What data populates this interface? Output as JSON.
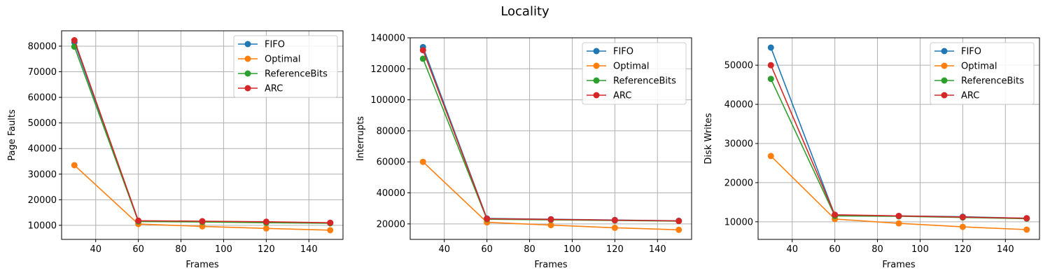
{
  "figure": {
    "title": "Locality"
  },
  "style": {
    "series_colors": [
      "#1f77b4",
      "#ff7f0e",
      "#2ca02c",
      "#d62728"
    ],
    "grid_color": "#b0b0b0"
  },
  "chart_data": [
    {
      "type": "line",
      "xlabel": "Frames",
      "ylabel": "Page Faults",
      "xlim": [
        24,
        156
      ],
      "ylim": [
        4500,
        86000
      ],
      "xticks": [
        40,
        60,
        80,
        100,
        120,
        140
      ],
      "yticks": [
        10000,
        20000,
        30000,
        40000,
        50000,
        60000,
        70000,
        80000
      ],
      "grid": true,
      "legend_position": "top-right",
      "x": [
        30,
        60,
        90,
        120,
        150
      ],
      "series": [
        {
          "name": "FIFO",
          "values": [
            81500,
            11700,
            11500,
            11300,
            10900
          ]
        },
        {
          "name": "Optimal",
          "values": [
            33500,
            10500,
            9600,
            8800,
            8100
          ]
        },
        {
          "name": "ReferenceBits",
          "values": [
            79800,
            11500,
            11300,
            11000,
            10800
          ]
        },
        {
          "name": "ARC",
          "values": [
            82300,
            11800,
            11600,
            11400,
            11000
          ]
        }
      ]
    },
    {
      "type": "line",
      "xlabel": "Frames",
      "ylabel": "Interrupts",
      "xlim": [
        24,
        156
      ],
      "ylim": [
        10000,
        140000
      ],
      "xticks": [
        40,
        60,
        80,
        100,
        120,
        140
      ],
      "yticks": [
        20000,
        40000,
        60000,
        80000,
        100000,
        120000,
        140000
      ],
      "grid": true,
      "legend_position": "top-right",
      "x": [
        30,
        60,
        90,
        120,
        150
      ],
      "series": [
        {
          "name": "FIFO",
          "values": [
            134000,
            23500,
            23000,
            22500,
            22000
          ]
        },
        {
          "name": "Optimal",
          "values": [
            60000,
            21000,
            19200,
            17500,
            16200
          ]
        },
        {
          "name": "ReferenceBits",
          "values": [
            126500,
            23000,
            22600,
            22200,
            21800
          ]
        },
        {
          "name": "ARC",
          "values": [
            132000,
            23300,
            22900,
            22400,
            21900
          ]
        }
      ]
    },
    {
      "type": "line",
      "xlabel": "Frames",
      "ylabel": "Disk Writes",
      "xlim": [
        24,
        156
      ],
      "ylim": [
        5500,
        57000
      ],
      "xticks": [
        40,
        60,
        80,
        100,
        120,
        140
      ],
      "yticks": [
        10000,
        20000,
        30000,
        40000,
        50000
      ],
      "grid": true,
      "legend_position": "top-right",
      "x": [
        30,
        60,
        90,
        120,
        150
      ],
      "series": [
        {
          "name": "FIFO",
          "values": [
            54500,
            11700,
            11500,
            11300,
            10900
          ]
        },
        {
          "name": "Optimal",
          "values": [
            26800,
            10700,
            9600,
            8700,
            8000
          ]
        },
        {
          "name": "ReferenceBits",
          "values": [
            46500,
            11500,
            11400,
            11100,
            10800
          ]
        },
        {
          "name": "ARC",
          "values": [
            50000,
            11800,
            11500,
            11200,
            10900
          ]
        }
      ]
    }
  ]
}
